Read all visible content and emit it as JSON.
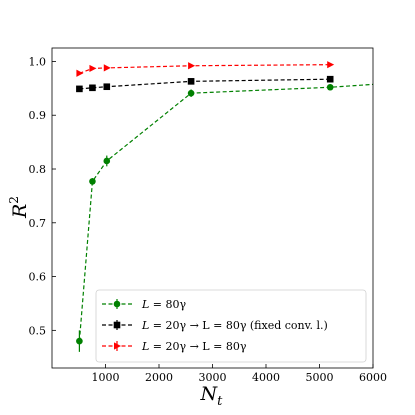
{
  "chart_data": {
    "type": "line",
    "xlabel": "N",
    "xlabel_sub": "t",
    "ylabel": "R",
    "ylabel_sup": "2",
    "xlim": [
      0,
      6000
    ],
    "ylim": [
      0.43,
      1.025
    ],
    "xticks": [
      1000,
      2000,
      3000,
      4000,
      5000,
      6000
    ],
    "xtick_labels": [
      "1000",
      "2000",
      "3000",
      "4000",
      "5000",
      "6000"
    ],
    "yticks": [
      0.5,
      0.6,
      0.7,
      0.8,
      0.9,
      1.0
    ],
    "ytick_labels": [
      "0.5",
      "0.6",
      "0.7",
      "0.8",
      "0.9",
      "1.0"
    ],
    "legend_position": "lower-right",
    "series": [
      {
        "name": "L = 80γ",
        "legend": {
          "lhs": "L",
          "rhs": "80γ",
          "tail": ""
        },
        "color": "#008000",
        "marker": "circle",
        "x": [
          512,
          756,
          1024,
          2600,
          5200,
          6100
        ],
        "y": [
          0.48,
          0.777,
          0.815,
          0.941,
          0.952,
          0.958
        ],
        "yerr": [
          0.02,
          0.006,
          0.01,
          0.007,
          0.004,
          0.0
        ]
      },
      {
        "name": "L = 20γ → L = 80γ (fixed conv. l.)",
        "legend": {
          "lhs": "L",
          "rhs": "20γ → L = 80γ",
          "tail": "(fixed conv. l.)"
        },
        "color": "#000000",
        "marker": "square",
        "x": [
          512,
          756,
          1024,
          2600,
          5200
        ],
        "y": [
          0.949,
          0.951,
          0.953,
          0.963,
          0.967
        ],
        "yerr": [
          0.002,
          0.002,
          0.002,
          0.003,
          0.003
        ]
      },
      {
        "name": "L = 20γ → L = 80γ",
        "legend": {
          "lhs": "L",
          "rhs": "20γ → L = 80γ",
          "tail": ""
        },
        "color": "#ff0000",
        "marker": "triangle-right",
        "x": [
          512,
          756,
          1024,
          2600,
          5200
        ],
        "y": [
          0.978,
          0.987,
          0.988,
          0.992,
          0.994
        ],
        "yerr": [
          0.002,
          0.002,
          0.001,
          0.001,
          0.001
        ]
      }
    ]
  }
}
